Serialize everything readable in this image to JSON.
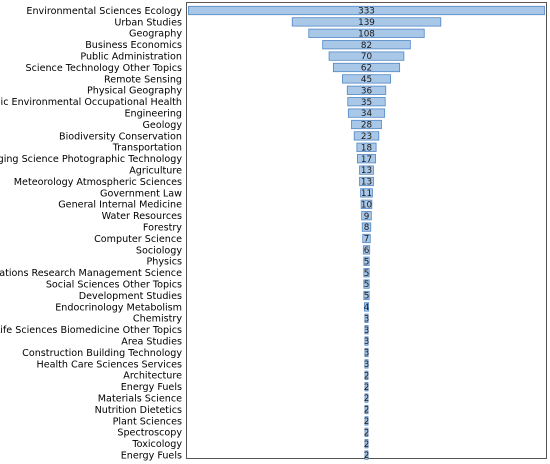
{
  "chart_data": {
    "type": "bar",
    "orientation": "horizontal",
    "layout": "centered-funnel",
    "categories": [
      "Environmental Sciences Ecology",
      "Urban Studies",
      "Geography",
      "Business Economics",
      "Public Administration",
      "Science Technology Other Topics",
      "Remote Sensing",
      "Physical Geography",
      "Public Environmental Occupational Health",
      "Engineering",
      "Geology",
      "Biodiversity Conservation",
      "Transportation",
      "Imaging Science Photographic Technology",
      "Agriculture",
      "Meteorology Atmospheric Sciences",
      "Government Law",
      "General Internal Medicine",
      "Water Resources",
      "Forestry",
      "Computer Science",
      "Sociology",
      "Physics",
      "Operations Research Management Science",
      "Social Sciences Other Topics",
      "Development Studies",
      "Endocrinology Metabolism",
      "Chemistry",
      "Life Sciences Biomedicine Other Topics",
      "Area Studies",
      "Construction Building Technology",
      "Health Care Sciences Services",
      "Architecture",
      "Energy Fuels",
      "Materials Science",
      "Nutrition Dietetics",
      "Plant Sciences",
      "Spectroscopy",
      "Toxicology",
      "Energy Fuels"
    ],
    "values": [
      333,
      139,
      108,
      82,
      70,
      62,
      45,
      36,
      35,
      34,
      28,
      23,
      18,
      17,
      13,
      13,
      11,
      10,
      9,
      8,
      7,
      6,
      5,
      5,
      5,
      5,
      4,
      3,
      3,
      3,
      3,
      3,
      2,
      2,
      2,
      2,
      2,
      2,
      2,
      2
    ],
    "title": "",
    "xlabel": "",
    "ylabel": "",
    "xlim": [
      0,
      333
    ],
    "grid": false,
    "legend": "none",
    "bar_fill": "#a9c8e8",
    "bar_stroke": "#4f86c6"
  }
}
